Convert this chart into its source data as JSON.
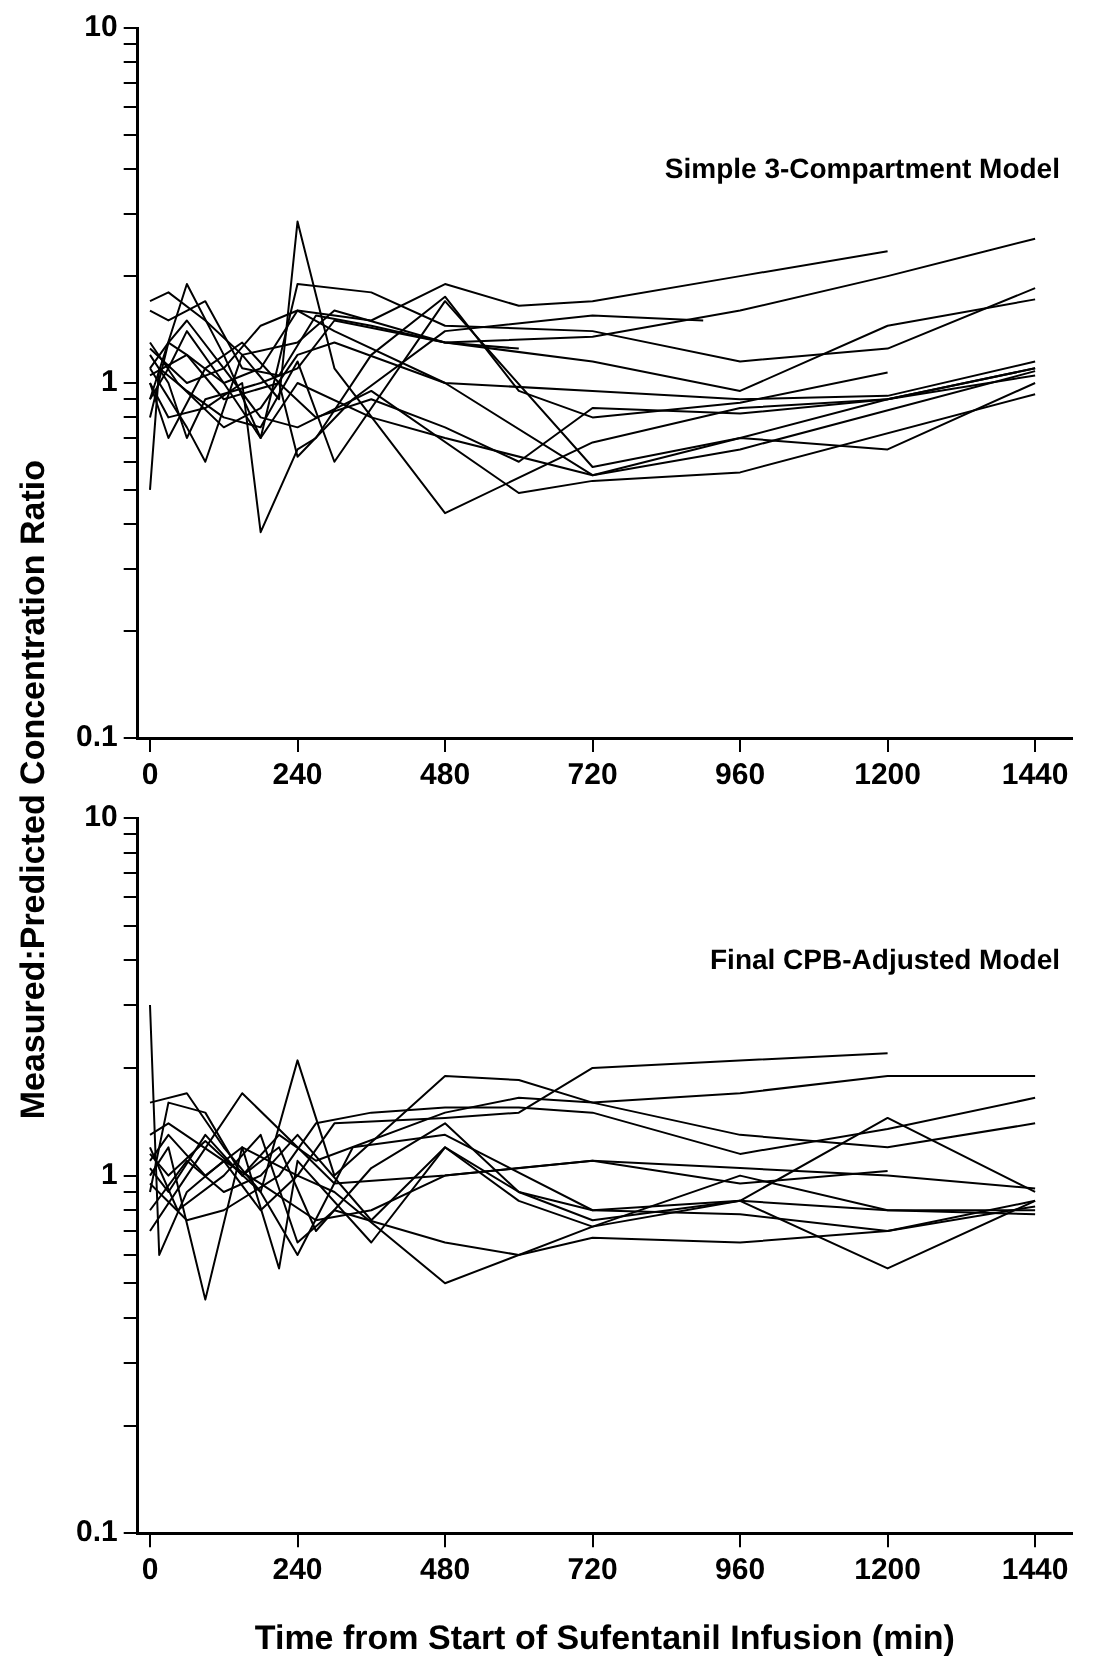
{
  "chart_data": [
    {
      "type": "line",
      "ylabel": "Measured:Predicted Concentration Ratio",
      "annotations": [
        "Simple 3-Compartment Model"
      ],
      "xlim": [
        -20,
        1500
      ],
      "xticks": [
        0,
        240,
        480,
        720,
        960,
        1200,
        1440
      ],
      "ylim": [
        0.1,
        10
      ],
      "yticks": [
        0.1,
        {
          "value": 0.2,
          "label": null
        },
        {
          "value": 0.3,
          "label": null
        },
        {
          "value": 0.4,
          "label": null
        },
        {
          "value": 0.5,
          "label": null
        },
        {
          "value": 0.6,
          "label": null
        },
        {
          "value": 0.7,
          "label": null
        },
        {
          "value": 0.8,
          "label": null
        },
        {
          "value": 0.9,
          "label": null
        },
        1,
        {
          "value": 2,
          "label": null
        },
        {
          "value": 3,
          "label": null
        },
        {
          "value": 4,
          "label": null
        },
        {
          "value": 5,
          "label": null
        },
        {
          "value": 6,
          "label": null
        },
        {
          "value": 7,
          "label": null
        },
        {
          "value": 8,
          "label": null
        },
        {
          "value": 9,
          "label": null
        },
        10
      ],
      "log": "y",
      "grid": false,
      "legend": false,
      "marker": "none",
      "line_style": "solid",
      "series": [
        {
          "color": "#000000",
          "x": [
            0,
            30,
            60,
            120,
            180,
            240,
            360,
            480,
            600,
            720,
            960,
            1200
          ],
          "values": [
            1.1,
            1.3,
            1.2,
            1.0,
            1.1,
            1.6,
            1.5,
            1.9,
            1.65,
            1.7,
            2.0,
            2.35
          ]
        },
        {
          "color": "#000000",
          "x": [
            0,
            30,
            90,
            150,
            240,
            300,
            480,
            720,
            960,
            1200,
            1440
          ],
          "values": [
            1.7,
            1.8,
            1.5,
            1.2,
            1.3,
            1.6,
            1.3,
            1.35,
            1.6,
            2.0,
            2.55
          ]
        },
        {
          "color": "#000000",
          "x": [
            0,
            60,
            120,
            180,
            240,
            360,
            480,
            720,
            960,
            1200,
            1440
          ],
          "values": [
            0.9,
            1.9,
            1.2,
            0.7,
            1.9,
            1.8,
            1.45,
            1.4,
            1.15,
            1.25,
            1.85
          ]
        },
        {
          "color": "#000000",
          "x": [
            0,
            30,
            60,
            90,
            180,
            240,
            300,
            480,
            720,
            960,
            1200,
            1440
          ],
          "values": [
            1.2,
            1.0,
            0.7,
            0.9,
            1.0,
            1.1,
            1.5,
            1.3,
            1.15,
            0.95,
            1.45,
            1.72
          ]
        },
        {
          "color": "#000000",
          "x": [
            0,
            15,
            60,
            120,
            180,
            240,
            300,
            480,
            720,
            960,
            1200,
            1440
          ],
          "values": [
            0.5,
            1.1,
            0.95,
            0.8,
            0.75,
            1.15,
            0.6,
            1.7,
            0.58,
            0.7,
            0.9,
            1.1
          ]
        },
        {
          "color": "#000000",
          "x": [
            0,
            30,
            90,
            150,
            180,
            240,
            270,
            360,
            480,
            600,
            720,
            960,
            1200
          ],
          "values": [
            1.0,
            0.8,
            0.85,
            1.0,
            0.38,
            0.65,
            0.7,
            1.2,
            1.75,
            0.95,
            0.8,
            0.88,
            1.07
          ]
        },
        {
          "color": "#000000",
          "x": [
            0,
            60,
            90,
            150,
            210,
            240,
            300,
            480,
            720,
            960,
            1200,
            1440
          ],
          "values": [
            1.1,
            0.75,
            0.6,
            1.2,
            0.9,
            2.85,
            1.1,
            0.43,
            0.68,
            0.85,
            0.9,
            1.1
          ]
        },
        {
          "color": "#000000",
          "x": [
            0,
            30,
            60,
            120,
            180,
            240,
            360,
            600,
            720,
            960,
            1440
          ],
          "values": [
            0.8,
            1.3,
            1.5,
            1.1,
            0.8,
            0.75,
            0.95,
            0.49,
            0.53,
            0.56,
            0.93
          ]
        },
        {
          "color": "#000000",
          "x": [
            0,
            45,
            120,
            180,
            240,
            300,
            480,
            720,
            960,
            1200,
            1440
          ],
          "values": [
            1.3,
            1.0,
            0.75,
            0.85,
            1.2,
            1.3,
            1.0,
            0.55,
            0.7,
            0.65,
            1.0
          ]
        },
        {
          "color": "#000000",
          "x": [
            0,
            60,
            120,
            210,
            270,
            360,
            480,
            600,
            720,
            960,
            1200,
            1440
          ],
          "values": [
            1.05,
            1.2,
            0.9,
            1.0,
            0.8,
            0.9,
            0.75,
            0.6,
            0.85,
            0.82,
            0.9,
            1.05
          ]
        },
        {
          "color": "#000000",
          "x": [
            0,
            30,
            90,
            150,
            210,
            240,
            330,
            480,
            720,
            900
          ],
          "values": [
            1.0,
            0.7,
            1.1,
            1.3,
            1.0,
            0.62,
            0.9,
            1.4,
            1.55,
            1.5
          ]
        },
        {
          "color": "#000000",
          "x": [
            0,
            30,
            90,
            150,
            210,
            270,
            360,
            480,
            600
          ],
          "values": [
            1.6,
            1.5,
            1.7,
            1.1,
            1.05,
            1.55,
            1.45,
            1.3,
            1.25
          ]
        },
        {
          "color": "#000000",
          "x": [
            0,
            60,
            120,
            180,
            240,
            300,
            480,
            720,
            960,
            1200,
            1440
          ],
          "values": [
            1.25,
            1.0,
            1.1,
            1.45,
            1.6,
            1.4,
            1.0,
            0.95,
            0.9,
            0.92,
            1.15
          ]
        },
        {
          "color": "#000000",
          "x": [
            0,
            30,
            60,
            120,
            180,
            240,
            360,
            480,
            720,
            960,
            1440
          ],
          "values": [
            0.9,
            1.1,
            1.4,
            1.0,
            0.7,
            1.0,
            0.8,
            0.7,
            0.55,
            0.65,
            1.08
          ]
        }
      ]
    },
    {
      "type": "line",
      "xlabel": "Time from Start of Sufentanil Infusion (min)",
      "annotations": [
        "Final CPB-Adjusted Model"
      ],
      "xlim": [
        -20,
        1500
      ],
      "xticks": [
        0,
        240,
        480,
        720,
        960,
        1200,
        1440
      ],
      "ylim": [
        0.1,
        10
      ],
      "yticks": [
        0.1,
        {
          "value": 0.2,
          "label": null
        },
        {
          "value": 0.3,
          "label": null
        },
        {
          "value": 0.4,
          "label": null
        },
        {
          "value": 0.5,
          "label": null
        },
        {
          "value": 0.6,
          "label": null
        },
        {
          "value": 0.7,
          "label": null
        },
        {
          "value": 0.8,
          "label": null
        },
        {
          "value": 0.9,
          "label": null
        },
        1,
        {
          "value": 2,
          "label": null
        },
        {
          "value": 3,
          "label": null
        },
        {
          "value": 4,
          "label": null
        },
        {
          "value": 5,
          "label": null
        },
        {
          "value": 6,
          "label": null
        },
        {
          "value": 7,
          "label": null
        },
        {
          "value": 8,
          "label": null
        },
        {
          "value": 9,
          "label": null
        },
        10
      ],
      "log": "y",
      "grid": false,
      "legend": false,
      "marker": "none",
      "line_style": "solid",
      "series": [
        {
          "color": "#000000",
          "x": [
            0,
            30,
            90,
            150,
            240,
            300,
            480,
            600,
            720,
            1200
          ],
          "values": [
            1.1,
            1.3,
            1.0,
            1.2,
            1.0,
            1.4,
            1.45,
            1.5,
            2.0,
            2.2
          ]
        },
        {
          "color": "#000000",
          "x": [
            0,
            60,
            120,
            180,
            240,
            300,
            480,
            600,
            720,
            960,
            1200,
            1440
          ],
          "values": [
            1.6,
            1.7,
            1.2,
            0.9,
            2.1,
            1.0,
            1.9,
            1.85,
            1.6,
            1.7,
            1.9,
            1.9
          ]
        },
        {
          "color": "#000000",
          "x": [
            0,
            30,
            90,
            150,
            210,
            270,
            480,
            600,
            720,
            960,
            1200,
            1440
          ],
          "values": [
            0.9,
            1.6,
            1.5,
            1.0,
            1.3,
            1.1,
            1.5,
            1.65,
            1.6,
            1.3,
            1.2,
            1.4
          ]
        },
        {
          "color": "#000000",
          "x": [
            0,
            15,
            60,
            120,
            180,
            240,
            300,
            480,
            720,
            960,
            1200,
            1440
          ],
          "values": [
            3.0,
            0.6,
            0.9,
            1.1,
            0.8,
            1.0,
            0.9,
            0.5,
            0.72,
            1.0,
            0.8,
            0.8
          ]
        },
        {
          "color": "#000000",
          "x": [
            0,
            30,
            90,
            150,
            210,
            240,
            360,
            480,
            600,
            720,
            960,
            1200,
            1440
          ],
          "values": [
            1.0,
            1.2,
            0.45,
            1.2,
            0.55,
            1.1,
            0.65,
            1.2,
            0.9,
            0.75,
            0.85,
            1.45,
            0.9
          ]
        },
        {
          "color": "#000000",
          "x": [
            0,
            45,
            120,
            180,
            240,
            300,
            480,
            600,
            720,
            960,
            1200,
            1440
          ],
          "values": [
            1.2,
            0.8,
            1.0,
            1.3,
            0.65,
            0.8,
            0.65,
            0.6,
            0.67,
            0.65,
            0.7,
            0.85
          ]
        },
        {
          "color": "#000000",
          "x": [
            0,
            60,
            120,
            180,
            240,
            360,
            480,
            600,
            720,
            960,
            1200,
            1440
          ],
          "values": [
            0.8,
            1.1,
            0.9,
            1.0,
            1.3,
            0.75,
            1.2,
            0.85,
            0.72,
            0.85,
            0.55,
            0.85
          ]
        },
        {
          "color": "#000000",
          "x": [
            0,
            30,
            90,
            150,
            210,
            270,
            360,
            480,
            600,
            720,
            960,
            1200,
            1440
          ],
          "values": [
            1.05,
            0.9,
            1.3,
            1.0,
            1.2,
            0.7,
            1.05,
            1.4,
            0.9,
            0.8,
            0.85,
            0.8,
            0.78
          ]
        },
        {
          "color": "#000000",
          "x": [
            0,
            60,
            150,
            240,
            300,
            480,
            600,
            720,
            960,
            1200,
            1440
          ],
          "values": [
            0.7,
            1.0,
            1.7,
            1.2,
            0.95,
            1.0,
            1.05,
            1.1,
            1.05,
            1.0,
            0.92
          ]
        },
        {
          "color": "#000000",
          "x": [
            0,
            30,
            120,
            180,
            270,
            360,
            480,
            720,
            960,
            1200
          ],
          "values": [
            1.3,
            1.4,
            1.1,
            0.95,
            0.75,
            0.8,
            1.0,
            1.1,
            0.95,
            1.03
          ]
        },
        {
          "color": "#000000",
          "x": [
            0,
            60,
            120,
            210,
            270,
            360,
            480,
            600,
            720,
            960,
            1200,
            1440
          ],
          "values": [
            0.95,
            0.75,
            0.8,
            1.0,
            1.4,
            1.5,
            1.55,
            1.55,
            1.5,
            1.15,
            1.35,
            1.65
          ]
        },
        {
          "color": "#000000",
          "x": [
            0,
            30,
            90,
            180,
            240,
            330,
            480,
            720,
            960,
            1200,
            1440
          ],
          "values": [
            1.15,
            1.0,
            1.25,
            0.9,
            0.6,
            1.2,
            1.3,
            0.8,
            0.78,
            0.7,
            0.82
          ]
        }
      ]
    }
  ]
}
